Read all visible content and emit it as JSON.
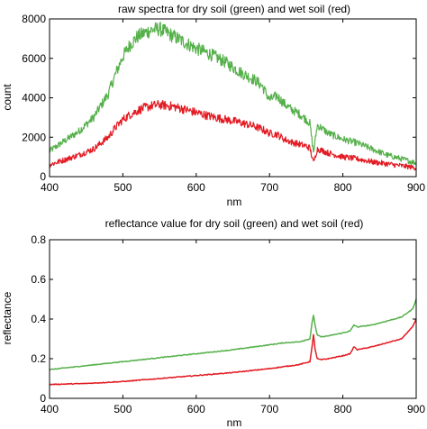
{
  "chart_data": [
    {
      "type": "line",
      "title": "raw spectra for dry soil (green) and wet soil (red)",
      "xlabel": "nm",
      "ylabel": "count",
      "xlim": [
        400,
        900
      ],
      "ylim": [
        0,
        8000
      ],
      "xticks": [
        400,
        500,
        600,
        700,
        800,
        900
      ],
      "yticks": [
        0,
        2000,
        4000,
        6000,
        8000
      ],
      "grid": false,
      "legend": "none",
      "noisy": true,
      "series": [
        {
          "color": "#55b04a",
          "x": [
            400,
            420,
            440,
            460,
            480,
            490,
            500,
            510,
            520,
            530,
            540,
            550,
            560,
            570,
            580,
            590,
            600,
            620,
            640,
            660,
            680,
            690,
            700,
            710,
            720,
            730,
            740,
            750,
            755,
            760,
            765,
            770,
            780,
            800,
            820,
            840,
            860,
            880,
            900
          ],
          "values": [
            1300,
            1800,
            2300,
            3000,
            4200,
            5200,
            6100,
            6700,
            7100,
            7300,
            7450,
            7500,
            7300,
            7100,
            6900,
            6700,
            6500,
            6200,
            5800,
            5300,
            4900,
            4600,
            3900,
            4100,
            3700,
            3400,
            3200,
            2900,
            2700,
            1200,
            2600,
            2500,
            2200,
            1900,
            1700,
            1400,
            1100,
            900,
            700
          ]
        },
        {
          "color": "#e21b23",
          "x": [
            400,
            420,
            440,
            460,
            480,
            490,
            500,
            510,
            520,
            530,
            540,
            550,
            560,
            570,
            580,
            590,
            600,
            620,
            640,
            660,
            680,
            690,
            700,
            710,
            720,
            730,
            740,
            750,
            755,
            760,
            765,
            770,
            780,
            800,
            820,
            840,
            860,
            880,
            900
          ],
          "values": [
            600,
            850,
            1100,
            1400,
            2000,
            2500,
            2900,
            3150,
            3350,
            3500,
            3600,
            3650,
            3600,
            3550,
            3450,
            3350,
            3250,
            3050,
            2900,
            2750,
            2550,
            2400,
            2200,
            2150,
            1900,
            1750,
            1650,
            1550,
            1450,
            700,
            1400,
            1350,
            1200,
            1000,
            900,
            750,
            650,
            550,
            450
          ]
        }
      ]
    },
    {
      "type": "line",
      "title": "reflectance value for dry soil (green) and wet soil (red)",
      "xlabel": "nm",
      "ylabel": "reflectance",
      "xlim": [
        400,
        900
      ],
      "ylim": [
        0,
        0.8
      ],
      "xticks": [
        400,
        500,
        600,
        700,
        800,
        900
      ],
      "yticks": [
        "0",
        "0.2",
        "0.4",
        "0.6",
        "0.8"
      ],
      "grid": false,
      "legend": "none",
      "noisy": false,
      "series": [
        {
          "color": "#55b04a",
          "x": [
            400,
            450,
            500,
            550,
            600,
            650,
            700,
            720,
            740,
            755,
            758,
            760,
            762,
            765,
            770,
            780,
            800,
            810,
            815,
            820,
            840,
            860,
            880,
            895,
            900
          ],
          "values": [
            0.145,
            0.165,
            0.185,
            0.205,
            0.225,
            0.245,
            0.27,
            0.28,
            0.285,
            0.3,
            0.38,
            0.42,
            0.37,
            0.32,
            0.31,
            0.315,
            0.33,
            0.34,
            0.37,
            0.36,
            0.37,
            0.39,
            0.41,
            0.45,
            0.5
          ]
        },
        {
          "color": "#e21b23",
          "x": [
            400,
            450,
            500,
            550,
            600,
            650,
            700,
            720,
            740,
            755,
            758,
            760,
            762,
            765,
            770,
            780,
            800,
            810,
            815,
            820,
            840,
            860,
            880,
            895,
            900
          ],
          "values": [
            0.07,
            0.075,
            0.085,
            0.1,
            0.115,
            0.13,
            0.15,
            0.16,
            0.17,
            0.185,
            0.26,
            0.32,
            0.25,
            0.2,
            0.195,
            0.2,
            0.215,
            0.225,
            0.26,
            0.245,
            0.26,
            0.28,
            0.3,
            0.36,
            0.4
          ]
        }
      ]
    }
  ]
}
